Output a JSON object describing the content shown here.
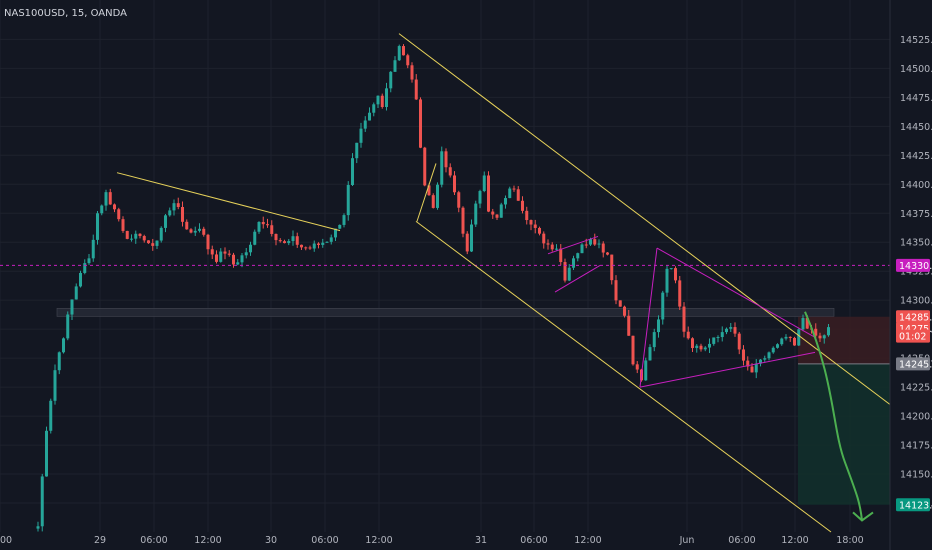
{
  "header": {
    "symbol_line": "NAS100USD, 15, OANDA"
  },
  "colors": {
    "background": "#131722",
    "up": "#26a69a",
    "down": "#ef5350",
    "grid": "#1e222d",
    "axis_text": "#b2b5be",
    "channel": "#e6d15a",
    "triangle": "#c71fbf",
    "level": "#c71fbf",
    "zone": "#2a2e39",
    "arrow": "#4caf50",
    "tp_fill": "#12302c",
    "sl_fill": "#3a1d22"
  },
  "chart_data": {
    "type": "candlestick",
    "ylim": [
      14100,
      14540
    ],
    "y_ticks": [
      "14525.0",
      "14500.0",
      "14475.0",
      "14450.0",
      "14425.0",
      "14400.0",
      "14375.0",
      "14350.0",
      "14325.0",
      "14300.0",
      "14275.0",
      "14250.0",
      "14225.0",
      "14200.0",
      "14175.0",
      "14150.0",
      "14125.0"
    ],
    "x_ticks": [
      "00",
      "29",
      "06:00",
      "12:00",
      "30",
      "06:00",
      "12:00",
      "31",
      "06:00",
      "12:00",
      "Jun",
      "06:00",
      "12:00",
      "18:00"
    ],
    "price_labels": [
      {
        "text": "14330.0",
        "value": 14330.0,
        "color": "#c71fbf"
      },
      {
        "text": "14285.7",
        "value": 14285.7,
        "color": "#ef5350"
      },
      {
        "text": "14275.5",
        "value": 14275.5,
        "color": "#ef5350"
      },
      {
        "text": "01:02",
        "value": 14269.0,
        "color": "#ef5350"
      },
      {
        "text": "14245.0",
        "value": 14245.0,
        "color": "#787b86"
      },
      {
        "text": "14123.5",
        "value": 14123.5,
        "color": "#089981"
      }
    ],
    "resistance_level": 14330.0,
    "zone": [
      14286,
      14293
    ],
    "target": 14123.5,
    "entry": 14245.0,
    "stop": 14285.7,
    "anchors": [
      [
        0,
        14105
      ],
      [
        2,
        14190
      ],
      [
        4,
        14240
      ],
      [
        6,
        14270
      ],
      [
        8,
        14300
      ],
      [
        10,
        14325
      ],
      [
        12,
        14335
      ],
      [
        14,
        14375
      ],
      [
        16,
        14392
      ],
      [
        18,
        14378
      ],
      [
        20,
        14362
      ],
      [
        22,
        14350
      ],
      [
        24,
        14358
      ],
      [
        26,
        14346
      ],
      [
        28,
        14352
      ],
      [
        30,
        14372
      ],
      [
        32,
        14386
      ],
      [
        34,
        14368
      ],
      [
        36,
        14358
      ],
      [
        38,
        14364
      ],
      [
        40,
        14345
      ],
      [
        42,
        14336
      ],
      [
        44,
        14342
      ],
      [
        46,
        14331
      ],
      [
        48,
        14338
      ],
      [
        50,
        14346
      ],
      [
        52,
        14370
      ],
      [
        54,
        14365
      ],
      [
        56,
        14355
      ],
      [
        58,
        14348
      ],
      [
        60,
        14352
      ],
      [
        62,
        14346
      ],
      [
        64,
        14345
      ],
      [
        66,
        14348
      ],
      [
        68,
        14352
      ],
      [
        70,
        14360
      ],
      [
        72,
        14375
      ],
      [
        74,
        14420
      ],
      [
        76,
        14445
      ],
      [
        78,
        14460
      ],
      [
        80,
        14476
      ],
      [
        81,
        14470
      ],
      [
        83,
        14498
      ],
      [
        85,
        14520
      ],
      [
        86,
        14510
      ],
      [
        88,
        14492
      ],
      [
        89,
        14470
      ],
      [
        91,
        14400
      ],
      [
        93,
        14380
      ],
      [
        95,
        14425
      ],
      [
        97,
        14405
      ],
      [
        99,
        14380
      ],
      [
        101,
        14340
      ],
      [
        103,
        14385
      ],
      [
        105,
        14410
      ],
      [
        106,
        14375
      ],
      [
        108,
        14370
      ],
      [
        110,
        14390
      ],
      [
        112,
        14398
      ],
      [
        114,
        14380
      ],
      [
        116,
        14365
      ],
      [
        118,
        14355
      ],
      [
        120,
        14348
      ],
      [
        122,
        14346
      ],
      [
        124,
        14320
      ],
      [
        126,
        14338
      ],
      [
        128,
        14346
      ],
      [
        130,
        14355
      ],
      [
        132,
        14348
      ],
      [
        134,
        14340
      ],
      [
        136,
        14300
      ],
      [
        138,
        14290
      ],
      [
        140,
        14245
      ],
      [
        142,
        14232
      ],
      [
        144,
        14258
      ],
      [
        146,
        14285
      ],
      [
        148,
        14330
      ],
      [
        150,
        14320
      ],
      [
        152,
        14275
      ],
      [
        154,
        14262
      ],
      [
        156,
        14258
      ],
      [
        158,
        14262
      ],
      [
        160,
        14268
      ],
      [
        162,
        14278
      ],
      [
        164,
        14270
      ],
      [
        166,
        14245
      ],
      [
        168,
        14238
      ],
      [
        170,
        14246
      ],
      [
        172,
        14255
      ],
      [
        174,
        14260
      ],
      [
        176,
        14268
      ],
      [
        178,
        14260
      ],
      [
        180,
        14285
      ],
      [
        182,
        14272
      ],
      [
        184,
        14266
      ],
      [
        186,
        14275
      ]
    ]
  }
}
